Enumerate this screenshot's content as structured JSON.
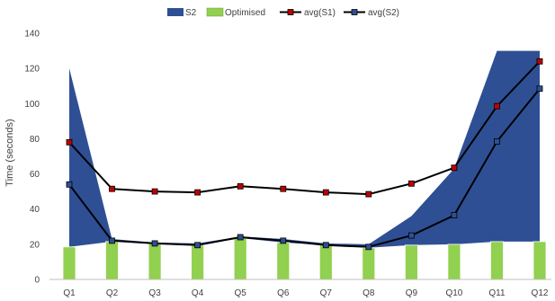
{
  "chart_data": {
    "type": "bar",
    "title": "",
    "xlabel": "",
    "ylabel": "Time (seconds)",
    "ylim": [
      0,
      140
    ],
    "yticks": [
      0,
      20,
      40,
      60,
      80,
      100,
      120,
      140
    ],
    "grid": false,
    "legend_position": "top-center",
    "categories": [
      "Q1",
      "Q2",
      "Q3",
      "Q4",
      "Q5",
      "Q6",
      "Q7",
      "Q8",
      "Q9",
      "Q10",
      "Q11",
      "Q12"
    ],
    "series": [
      {
        "name": "S2",
        "kind": "area-range",
        "color": "#2F4F94",
        "lower": [
          18.5,
          21.5,
          20.5,
          19.5,
          23.5,
          21,
          19.5,
          18,
          19.5,
          20,
          21.5,
          21.5
        ],
        "upper": [
          120,
          23,
          21,
          20.5,
          24.5,
          23,
          20.5,
          20,
          36,
          63,
          130,
          130
        ]
      },
      {
        "name": "Optimised",
        "kind": "bar",
        "color": "#92D050",
        "values": [
          18.5,
          21.5,
          20.5,
          19.5,
          23.5,
          21,
          19.5,
          18,
          19.5,
          20,
          21.5,
          21.5
        ]
      },
      {
        "name": "avg(S1)",
        "kind": "line",
        "color": "#000000",
        "marker_color": "#C00000",
        "values": [
          78,
          51.5,
          50,
          49.5,
          53,
          51.5,
          49.5,
          48.5,
          54.5,
          63.5,
          98.5,
          124
        ]
      },
      {
        "name": "avg(S2)",
        "kind": "line",
        "color": "#000000",
        "marker_color": "#2F4F94",
        "values": [
          54,
          22,
          20.5,
          19.5,
          24,
          22,
          19.5,
          18.5,
          25,
          36.5,
          78.5,
          108.5
        ]
      }
    ]
  }
}
